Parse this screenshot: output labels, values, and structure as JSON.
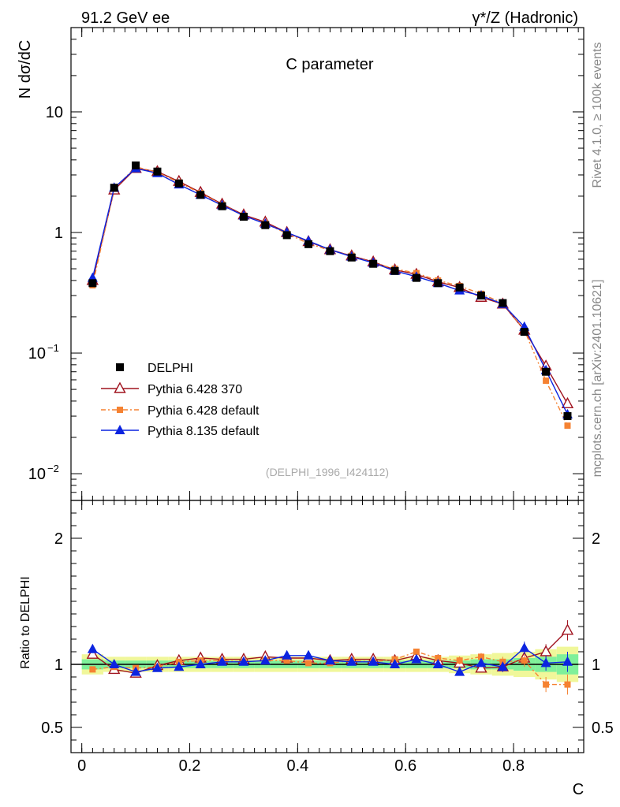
{
  "header": {
    "beam_label": "91.2 GeV ee",
    "process_label": "γ*/Z (Hadronic)",
    "rivet_label": "Rivet 4.1.0, ≥ 100k events",
    "mcplots_label": "mcplots.cern.ch [arXiv:2401.10621]"
  },
  "chart_data": {
    "type": "line",
    "title": "C parameter",
    "watermark": "(DELPHI_1996_I424112)",
    "ylabel_top": "N  dσ/dC",
    "ylabel_ratio": "Ratio to DELPHI",
    "xlabel": "C",
    "xlim": [
      -0.02,
      0.93
    ],
    "ylim_top": [
      0.006,
      50
    ],
    "ylim_ratio": [
      0.3,
      2.3
    ],
    "x_ticks": [
      {
        "v": 0,
        "label": "0"
      },
      {
        "v": 0.2,
        "label": "0.2"
      },
      {
        "v": 0.4,
        "label": "0.4"
      },
      {
        "v": 0.6,
        "label": "0.6"
      },
      {
        "v": 0.8,
        "label": "0.8"
      }
    ],
    "y_ticks_top": [
      {
        "v": 10,
        "label": "10"
      },
      {
        "v": 1,
        "label": "1"
      },
      {
        "v": 0.1,
        "label": "10",
        "sup": "−1"
      },
      {
        "v": 0.01,
        "label": "10",
        "sup": "−2"
      }
    ],
    "y_ticks_ratio": [
      {
        "v": 2,
        "label": "2"
      },
      {
        "v": 1,
        "label": "1"
      },
      {
        "v": 0.5,
        "label": "0.5"
      }
    ],
    "x": [
      0.02,
      0.06,
      0.1,
      0.14,
      0.18,
      0.22,
      0.26,
      0.3,
      0.34,
      0.38,
      0.42,
      0.46,
      0.5,
      0.54,
      0.58,
      0.62,
      0.66,
      0.7,
      0.74,
      0.78,
      0.82,
      0.86,
      0.9
    ],
    "series": [
      {
        "name": "DELPHI",
        "color": "#000000",
        "marker": "square",
        "values": [
          0.38,
          2.35,
          3.6,
          3.2,
          2.55,
          2.05,
          1.65,
          1.35,
          1.15,
          0.95,
          0.8,
          0.7,
          0.62,
          0.55,
          0.48,
          0.42,
          0.38,
          0.35,
          0.3,
          0.26,
          0.15,
          0.07,
          0.03
        ]
      },
      {
        "name": "Pythia 6.428 370",
        "color": "#a0131f",
        "marker": "triangle-open",
        "values": [
          0.4,
          2.25,
          3.4,
          3.2,
          2.65,
          2.15,
          1.72,
          1.4,
          1.22,
          1.0,
          0.84,
          0.72,
          0.64,
          0.57,
          0.49,
          0.45,
          0.39,
          0.35,
          0.29,
          0.255,
          0.155,
          0.078,
          0.038
        ]
      },
      {
        "name": "Pythia 6.428 default",
        "color": "#f58232",
        "marker": "square-small",
        "dashed": true,
        "values": [
          0.365,
          2.3,
          3.5,
          3.15,
          2.6,
          2.12,
          1.7,
          1.38,
          1.19,
          0.98,
          0.81,
          0.71,
          0.64,
          0.56,
          0.5,
          0.46,
          0.4,
          0.36,
          0.31,
          0.26,
          0.155,
          0.059,
          0.025
        ]
      },
      {
        "name": "Pythia 8.135 default",
        "color": "#0c24e0",
        "marker": "triangle",
        "values": [
          0.42,
          2.35,
          3.4,
          3.1,
          2.5,
          2.05,
          1.68,
          1.38,
          1.18,
          1.0,
          0.85,
          0.72,
          0.63,
          0.56,
          0.48,
          0.43,
          0.38,
          0.33,
          0.3,
          0.255,
          0.165,
          0.072,
          0.031
        ]
      }
    ],
    "ratio_series": [
      {
        "name": "Pythia 6.428 370",
        "values": [
          1.08,
          0.96,
          0.93,
          0.99,
          1.03,
          1.05,
          1.04,
          1.04,
          1.06,
          1.05,
          1.05,
          1.03,
          1.04,
          1.04,
          1.03,
          1.07,
          1.03,
          1.01,
          0.97,
          0.98,
          1.05,
          1.1,
          1.27
        ],
        "err": [
          0.02,
          0.02,
          0.02,
          0.02,
          0.02,
          0.02,
          0.02,
          0.02,
          0.02,
          0.02,
          0.02,
          0.02,
          0.02,
          0.02,
          0.02,
          0.02,
          0.02,
          0.03,
          0.03,
          0.04,
          0.05,
          0.06,
          0.08
        ]
      },
      {
        "name": "Pythia 6.428 default",
        "values": [
          0.96,
          0.98,
          0.97,
          0.98,
          1.02,
          1.03,
          1.03,
          1.02,
          1.03,
          1.03,
          1.01,
          1.01,
          1.03,
          1.02,
          1.04,
          1.1,
          1.05,
          1.03,
          1.06,
          1.02,
          1.03,
          0.84,
          0.84
        ],
        "err": [
          0.02,
          0.02,
          0.02,
          0.02,
          0.02,
          0.02,
          0.02,
          0.02,
          0.02,
          0.02,
          0.02,
          0.02,
          0.02,
          0.02,
          0.02,
          0.02,
          0.02,
          0.03,
          0.03,
          0.04,
          0.05,
          0.06,
          0.08
        ]
      },
      {
        "name": "Pythia 8.135 default",
        "values": [
          1.12,
          1.0,
          0.94,
          0.97,
          0.98,
          1.0,
          1.02,
          1.02,
          1.03,
          1.07,
          1.07,
          1.03,
          1.02,
          1.02,
          1.0,
          1.04,
          1.0,
          0.94,
          1.01,
          0.98,
          1.13,
          1.01,
          1.02
        ],
        "err": [
          0.02,
          0.02,
          0.02,
          0.02,
          0.02,
          0.02,
          0.02,
          0.02,
          0.02,
          0.02,
          0.02,
          0.02,
          0.02,
          0.02,
          0.02,
          0.02,
          0.02,
          0.03,
          0.03,
          0.04,
          0.05,
          0.06,
          0.08
        ]
      }
    ],
    "data_band": {
      "inner": [
        0.04,
        0.03,
        0.03,
        0.03,
        0.03,
        0.03,
        0.03,
        0.03,
        0.03,
        0.03,
        0.03,
        0.03,
        0.03,
        0.03,
        0.03,
        0.03,
        0.03,
        0.03,
        0.04,
        0.04,
        0.05,
        0.06,
        0.08
      ],
      "outer": [
        0.08,
        0.06,
        0.06,
        0.06,
        0.06,
        0.06,
        0.06,
        0.06,
        0.06,
        0.06,
        0.06,
        0.06,
        0.06,
        0.06,
        0.06,
        0.06,
        0.06,
        0.07,
        0.08,
        0.09,
        0.1,
        0.12,
        0.14
      ]
    },
    "legend": [
      "DELPHI",
      "Pythia 6.428 370",
      "Pythia 6.428 default",
      "Pythia 8.135 default"
    ],
    "legend_position": "bottom-left",
    "colors": {
      "band_inner": "#7ff09a",
      "band_outer": "#f0f79a"
    }
  }
}
